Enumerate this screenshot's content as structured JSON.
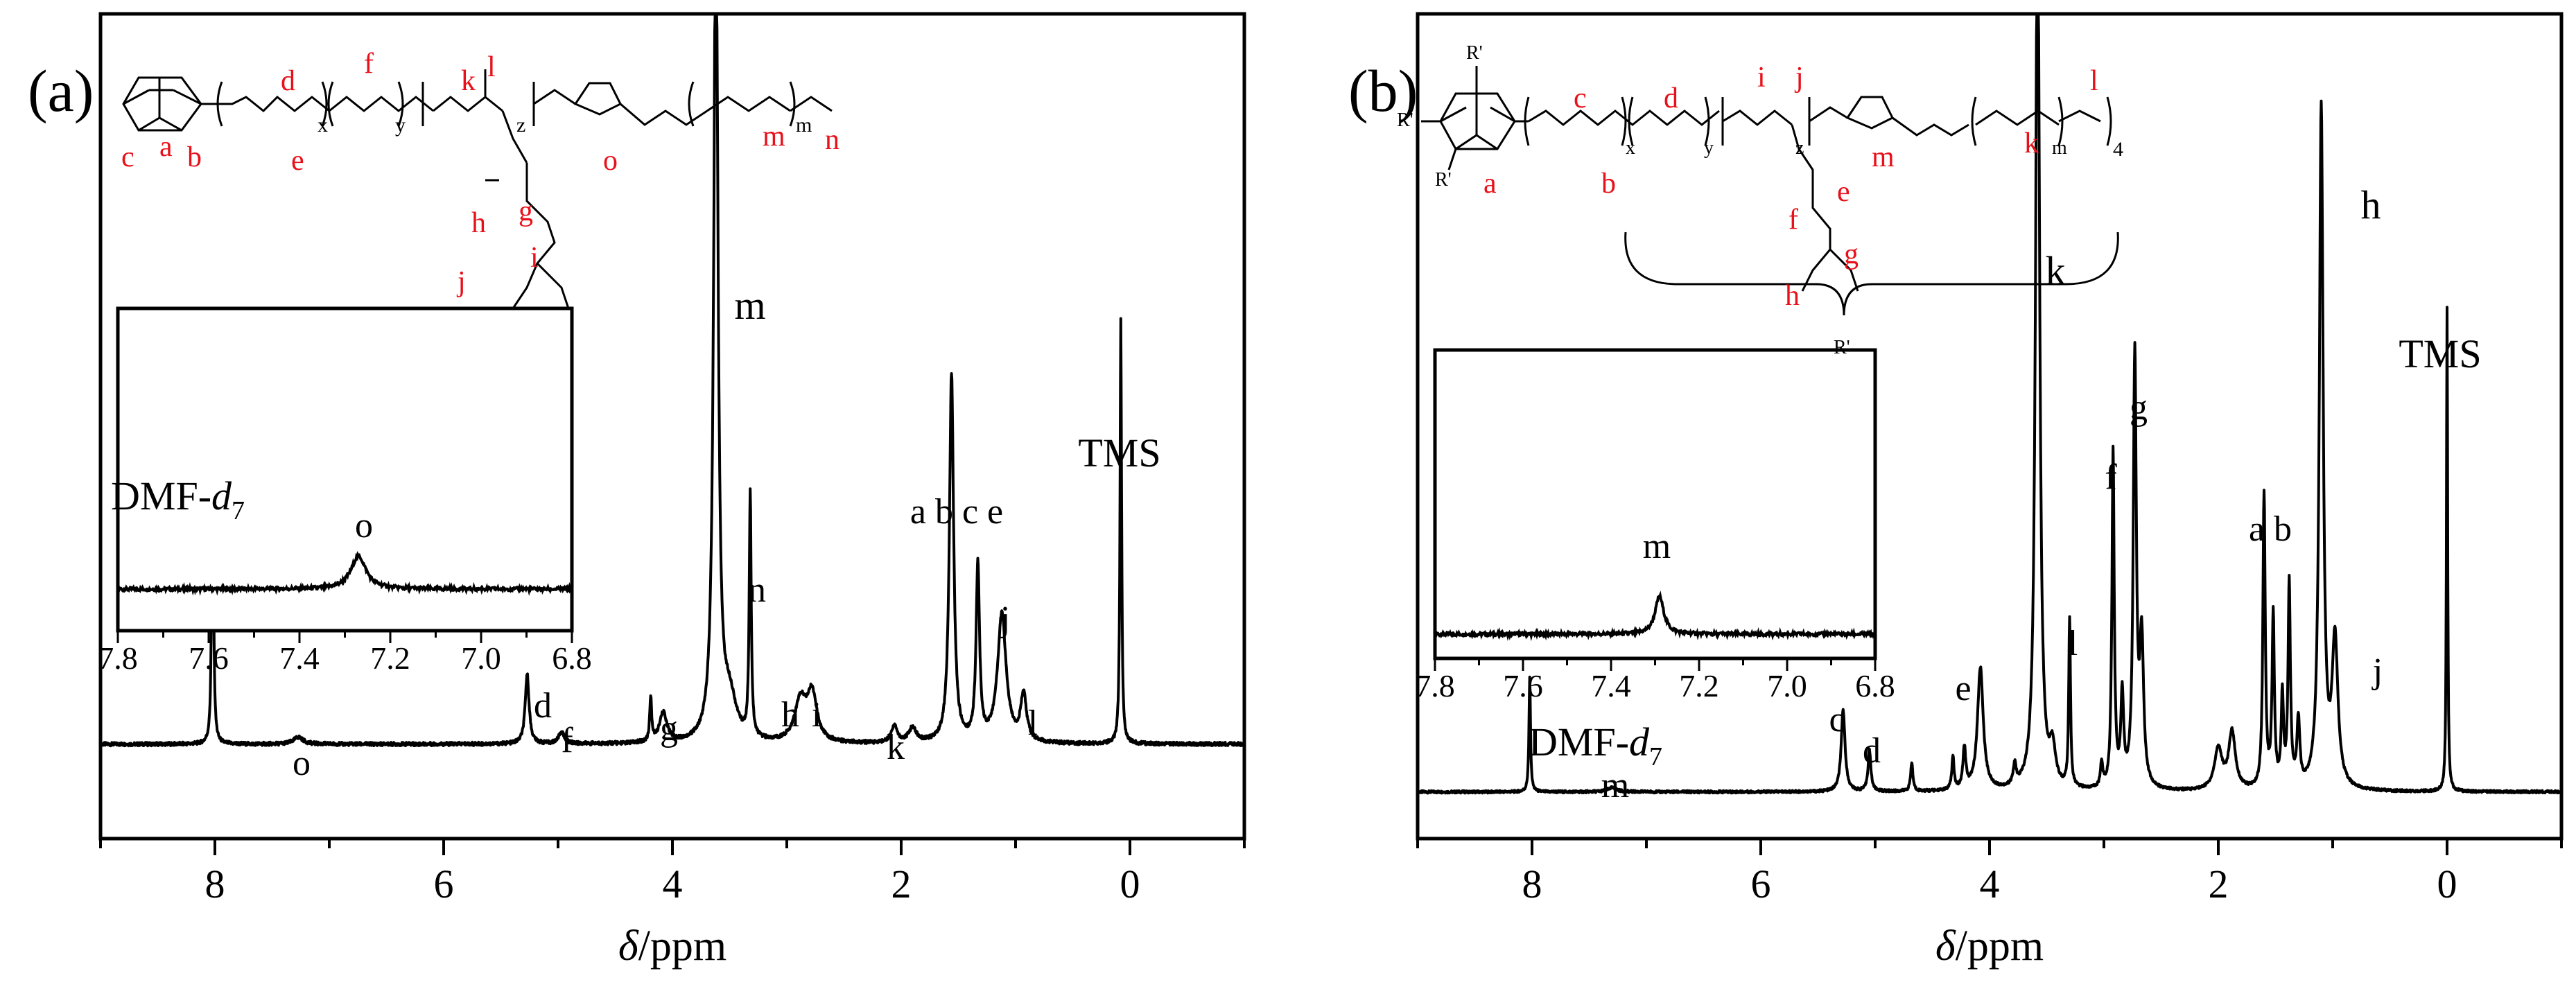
{
  "chart_data": [
    {
      "type": "line",
      "panel_label": "(a)",
      "xlabel_italic": "δ",
      "xlabel_unit": "/ppm",
      "xlim": [
        9,
        -1
      ],
      "ylim": [
        -0.12,
        1.25
      ],
      "x_ticks": [
        "8",
        "6",
        "4",
        "2",
        "0"
      ],
      "series": [
        {
          "name": "1H NMR spectrum",
          "peaks": [
            {
              "ppm": 8.02,
              "h": 0.66,
              "w": 0.008
            },
            {
              "ppm": 7.27,
              "h": 0.012,
              "w": 0.05
            },
            {
              "ppm": 5.27,
              "h": 0.12,
              "w": 0.02
            },
            {
              "ppm": 4.97,
              "h": 0.02,
              "w": 0.03
            },
            {
              "ppm": 4.19,
              "h": 0.075,
              "w": 0.01
            },
            {
              "ppm": 4.08,
              "h": 0.05,
              "w": 0.04
            },
            {
              "ppm": 3.62,
              "h": 1.45,
              "w": 0.022
            },
            {
              "ppm": 3.5,
              "h": 0.07,
              "w": 0.07
            },
            {
              "ppm": 3.32,
              "h": 0.42,
              "w": 0.01
            },
            {
              "ppm": 2.88,
              "h": 0.07,
              "w": 0.06
            },
            {
              "ppm": 2.78,
              "h": 0.08,
              "w": 0.05
            },
            {
              "ppm": 2.06,
              "h": 0.03,
              "w": 0.03
            },
            {
              "ppm": 1.9,
              "h": 0.025,
              "w": 0.04
            },
            {
              "ppm": 1.56,
              "h": 0.63,
              "w": 0.022
            },
            {
              "ppm": 1.33,
              "h": 0.3,
              "w": 0.018
            },
            {
              "ppm": 1.12,
              "h": 0.22,
              "w": 0.045
            },
            {
              "ppm": 0.93,
              "h": 0.08,
              "w": 0.03
            },
            {
              "ppm": 0.08,
              "h": 0.73,
              "w": 0.008
            }
          ]
        },
        {
          "name": "inset",
          "xlim": [
            7.8,
            6.8
          ],
          "x_ticks": [
            "7.8",
            "7.6",
            "7.4",
            "7.2",
            "7.0",
            "6.8"
          ],
          "peak": {
            "ppm": 7.27,
            "h": 0.28,
            "w": 0.02
          }
        }
      ],
      "annotations": [
        "DMF-d7",
        "o",
        "o",
        "d",
        "f",
        "g",
        "m",
        "n",
        "h",
        "i",
        "k",
        "a b c e",
        "j",
        "l",
        "TMS"
      ],
      "structure_labels": [
        "a",
        "b",
        "c",
        "d",
        "e",
        "f",
        "g",
        "h",
        "i",
        "j",
        "k",
        "l",
        "m",
        "n",
        "o",
        "x",
        "y",
        "z",
        "m"
      ]
    },
    {
      "type": "line",
      "panel_label": "(b)",
      "xlabel_italic": "δ",
      "xlabel_unit": "/ppm",
      "xlim": [
        9,
        -1
      ],
      "ylim": [
        -0.08,
        1.9
      ],
      "x_ticks": [
        "8",
        "6",
        "4",
        "2",
        "0"
      ],
      "series": [
        {
          "name": "1H NMR spectrum",
          "peaks": [
            {
              "ppm": 8.02,
              "h": 0.28,
              "w": 0.008
            },
            {
              "ppm": 7.3,
              "h": 0.01,
              "w": 0.05
            },
            {
              "ppm": 5.28,
              "h": 0.2,
              "w": 0.02
            },
            {
              "ppm": 5.05,
              "h": 0.1,
              "w": 0.015
            },
            {
              "ppm": 4.68,
              "h": 0.07,
              "w": 0.012
            },
            {
              "ppm": 4.32,
              "h": 0.08,
              "w": 0.012
            },
            {
              "ppm": 4.22,
              "h": 0.1,
              "w": 0.015
            },
            {
              "ppm": 4.08,
              "h": 0.3,
              "w": 0.03
            },
            {
              "ppm": 3.78,
              "h": 0.05,
              "w": 0.015
            },
            {
              "ppm": 3.58,
              "h": 2.3,
              "w": 0.02
            },
            {
              "ppm": 3.45,
              "h": 0.09,
              "w": 0.03
            },
            {
              "ppm": 3.3,
              "h": 0.41,
              "w": 0.009
            },
            {
              "ppm": 3.02,
              "h": 0.06,
              "w": 0.012
            },
            {
              "ppm": 2.92,
              "h": 0.82,
              "w": 0.012
            },
            {
              "ppm": 2.84,
              "h": 0.22,
              "w": 0.015
            },
            {
              "ppm": 2.73,
              "h": 1.05,
              "w": 0.016
            },
            {
              "ppm": 2.67,
              "h": 0.35,
              "w": 0.02
            },
            {
              "ppm": 2.0,
              "h": 0.1,
              "w": 0.04
            },
            {
              "ppm": 1.88,
              "h": 0.14,
              "w": 0.035
            },
            {
              "ppm": 1.6,
              "h": 0.72,
              "w": 0.012
            },
            {
              "ppm": 1.52,
              "h": 0.42,
              "w": 0.012
            },
            {
              "ppm": 1.44,
              "h": 0.22,
              "w": 0.012
            },
            {
              "ppm": 1.38,
              "h": 0.5,
              "w": 0.012
            },
            {
              "ppm": 1.3,
              "h": 0.16,
              "w": 0.015
            },
            {
              "ppm": 1.1,
              "h": 1.66,
              "w": 0.02
            },
            {
              "ppm": 0.98,
              "h": 0.36,
              "w": 0.03
            },
            {
              "ppm": 0.0,
              "h": 1.18,
              "w": 0.006
            }
          ]
        },
        {
          "name": "inset",
          "xlim": [
            7.8,
            6.8
          ],
          "x_ticks": [
            "7.8",
            "7.6",
            "7.4",
            "7.2",
            "7.0",
            "6.8"
          ],
          "peak": {
            "ppm": 7.29,
            "h": 0.32,
            "w": 0.012
          }
        }
      ],
      "annotations": [
        "DMF-d7",
        "m",
        "c",
        "d",
        "e",
        "k",
        "l",
        "f",
        "g",
        "a b",
        "h",
        "j",
        "TMS",
        "m"
      ],
      "structure_labels": [
        "R'",
        "R'",
        "R'",
        "R'",
        "a",
        "b",
        "c",
        "d",
        "e",
        "f",
        "g",
        "h",
        "i",
        "j",
        "k",
        "l",
        "m",
        "x",
        "y",
        "z",
        "m",
        "4"
      ]
    }
  ]
}
